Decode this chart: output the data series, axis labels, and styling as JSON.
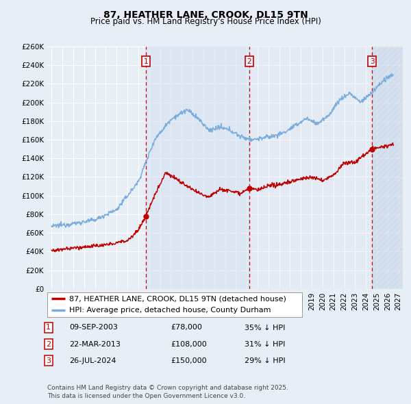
{
  "title": "87, HEATHER LANE, CROOK, DL15 9TN",
  "subtitle": "Price paid vs. HM Land Registry's House Price Index (HPI)",
  "ylim": [
    0,
    260000
  ],
  "yticks": [
    0,
    20000,
    40000,
    60000,
    80000,
    100000,
    120000,
    140000,
    160000,
    180000,
    200000,
    220000,
    240000,
    260000
  ],
  "xlim_start": 1994.6,
  "xlim_end": 2027.4,
  "bg_color": "#e8eef5",
  "plot_bg_color": "#e8eef5",
  "grid_color": "#ffffff",
  "hpi_color": "#7aaddc",
  "price_color": "#c00000",
  "sale_line_color": "#cc0000",
  "shade1_color": "#d0dff0",
  "shade2_color": "#d8e4f0",
  "hatch_color": "#c8d8e8",
  "sales": [
    {
      "date_num": 2003.69,
      "price": 78000,
      "label": "1",
      "date_str": "09-SEP-2003",
      "pct": "35% ↓ HPI"
    },
    {
      "date_num": 2013.22,
      "price": 108000,
      "label": "2",
      "date_str": "22-MAR-2013",
      "pct": "31% ↓ HPI"
    },
    {
      "date_num": 2024.56,
      "price": 150000,
      "label": "3",
      "date_str": "26-JUL-2024",
      "pct": "29% ↓ HPI"
    }
  ],
  "legend_price_label": "87, HEATHER LANE, CROOK, DL15 9TN (detached house)",
  "legend_hpi_label": "HPI: Average price, detached house, County Durham",
  "footer": "Contains HM Land Registry data © Crown copyright and database right 2025.\nThis data is licensed under the Open Government Licence v3.0.",
  "title_fontsize": 10,
  "subtitle_fontsize": 8.5,
  "axis_fontsize": 7.5,
  "legend_fontsize": 8,
  "table_fontsize": 8,
  "footer_fontsize": 6.5,
  "hpi_anchors_years": [
    1995.0,
    1997.0,
    1999.0,
    2001.0,
    2003.0,
    2004.5,
    2006.0,
    2007.5,
    2008.5,
    2009.5,
    2010.5,
    2011.5,
    2012.5,
    2013.5,
    2014.5,
    2015.5,
    2016.5,
    2017.5,
    2018.5,
    2019.5,
    2020.5,
    2021.5,
    2022.5,
    2023.5,
    2024.5,
    2025.5,
    2026.5
  ],
  "hpi_anchors_vals": [
    67000,
    70000,
    74000,
    85000,
    115000,
    160000,
    182000,
    192000,
    183000,
    170000,
    173000,
    170000,
    163000,
    160000,
    162000,
    164000,
    168000,
    175000,
    183000,
    177000,
    185000,
    202000,
    210000,
    200000,
    210000,
    222000,
    230000
  ],
  "price_anchors_years": [
    1995.0,
    1996.5,
    1998.0,
    2000.0,
    2002.0,
    2003.0,
    2003.69,
    2004.5,
    2005.5,
    2006.5,
    2007.5,
    2008.5,
    2009.5,
    2010.5,
    2011.5,
    2012.5,
    2013.22,
    2014.0,
    2015.0,
    2016.0,
    2017.0,
    2018.0,
    2019.0,
    2020.0,
    2021.0,
    2022.0,
    2023.0,
    2024.0,
    2024.56,
    2025.5,
    2026.5
  ],
  "price_anchors_vals": [
    41000,
    43000,
    45000,
    47000,
    52000,
    63000,
    78000,
    100000,
    125000,
    118000,
    110000,
    103000,
    99000,
    107000,
    105000,
    103000,
    108000,
    106000,
    110000,
    112000,
    115000,
    118000,
    120000,
    116000,
    122000,
    135000,
    136000,
    145000,
    150000,
    152000,
    155000
  ]
}
